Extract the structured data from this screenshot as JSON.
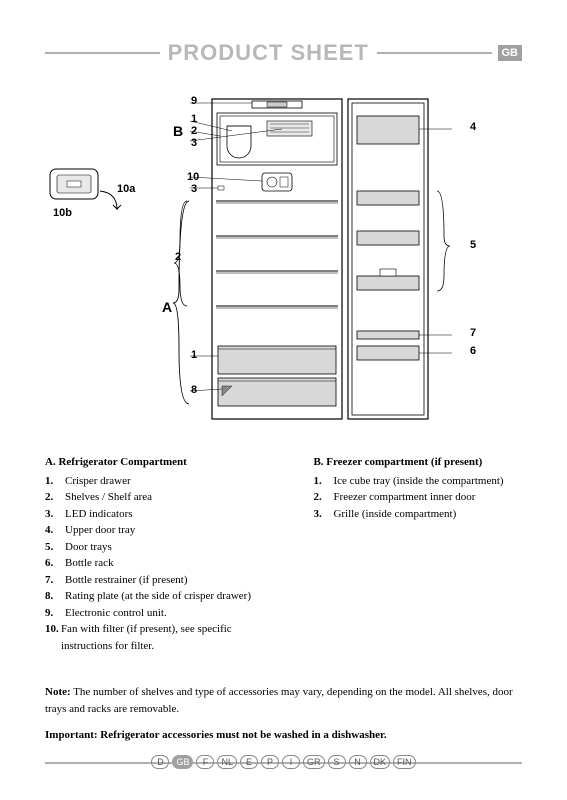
{
  "header": {
    "title": "PRODUCT SHEET",
    "lang_badge": "GB"
  },
  "diagram": {
    "section_labels": {
      "A": "A",
      "B": "B"
    },
    "callouts": {
      "c1": "1",
      "c2": "2",
      "c3": "3",
      "c4": "4",
      "c5": "5",
      "c6": "6",
      "c7": "7",
      "c8": "8",
      "c9": "9",
      "c10": "10",
      "c10a": "10a",
      "c10b": "10b",
      "c1b": "1",
      "c2b": "2",
      "c3b": "3"
    }
  },
  "legend": {
    "A": {
      "heading": "A. Refrigerator Compartment",
      "items": [
        {
          "n": "1.",
          "t": "Crisper drawer"
        },
        {
          "n": "2.",
          "t": "Shelves / Shelf area"
        },
        {
          "n": "3.",
          "t": "LED indicators"
        },
        {
          "n": "4.",
          "t": "Upper door tray"
        },
        {
          "n": "5.",
          "t": "Door trays"
        },
        {
          "n": "6.",
          "t": "Bottle rack"
        },
        {
          "n": "7.",
          "t": "Bottle restrainer (if present)"
        },
        {
          "n": "8.",
          "t": "Rating plate (at the side of crisper drawer)"
        },
        {
          "n": "9.",
          "t": "Electronic control unit."
        },
        {
          "n": "10.",
          "t": "Fan with filter (if present), see specific instructions for filter."
        }
      ]
    },
    "B": {
      "heading": "B. Freezer compartment (if present)",
      "items": [
        {
          "n": "1.",
          "t": "Ice cube tray (inside the compartment)"
        },
        {
          "n": "2.",
          "t": "Freezer compartment inner door"
        },
        {
          "n": "3.",
          "t": "Grille (inside compartment)"
        }
      ]
    }
  },
  "notes": {
    "note_label": "Note:",
    "note_text": " The number of shelves and type of accessories may vary, depending on the model. All shelves, door trays and racks are removable.",
    "important": "Important: Refrigerator accessories must not be washed in a dishwasher."
  },
  "footer": {
    "langs": [
      "D",
      "GB",
      "F",
      "NL",
      "E",
      "P",
      "I",
      "GR",
      "S",
      "N",
      "DK",
      "FIN"
    ],
    "active": "GB"
  }
}
